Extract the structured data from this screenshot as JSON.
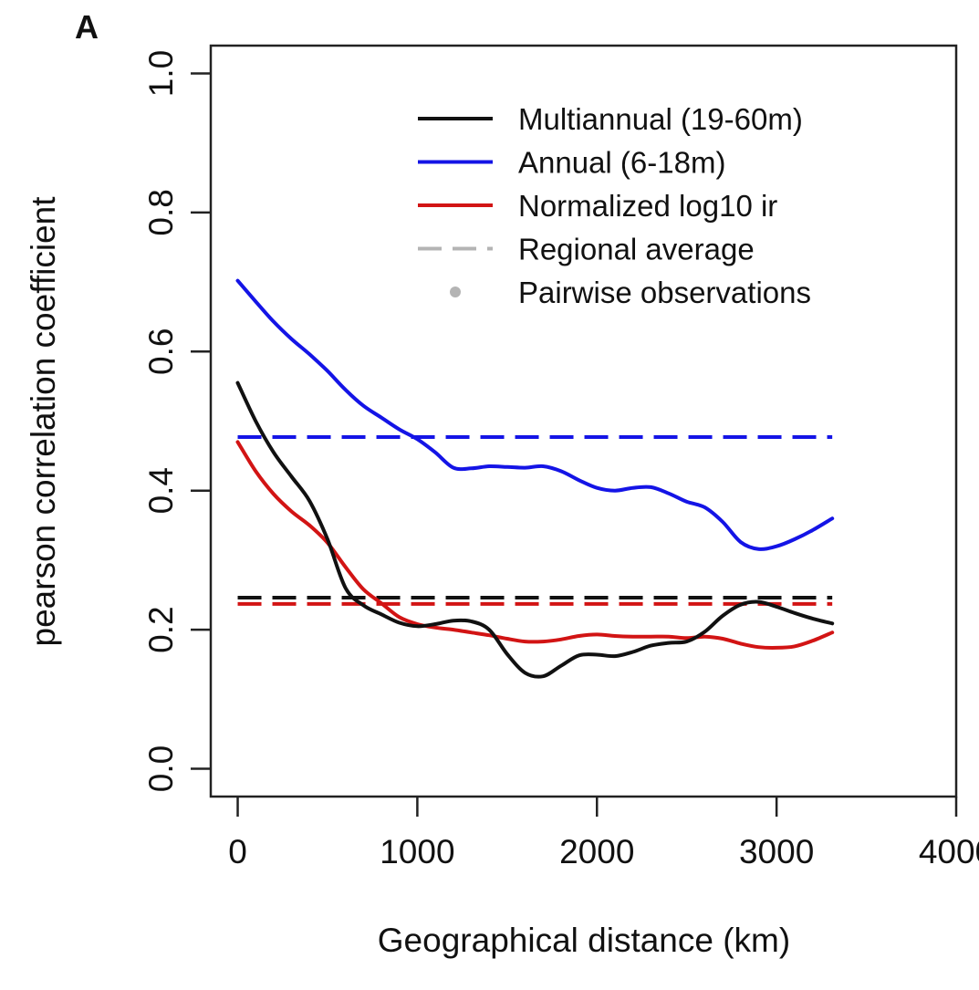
{
  "panel_label": "A",
  "chart_data": {
    "type": "line",
    "xlabel": "Geographical distance (km)",
    "ylabel": "pearson correlation coefficient",
    "xlim": [
      -150,
      4000
    ],
    "ylim": [
      -0.04,
      1.04
    ],
    "x_ticks": [
      0,
      1000,
      2000,
      3000,
      4000
    ],
    "y_ticks": [
      0.0,
      0.2,
      0.4,
      0.6,
      0.8,
      1.0
    ],
    "y_tick_labels": [
      "0.0",
      "0.2",
      "0.4",
      "0.6",
      "0.8",
      "1.0"
    ],
    "x_tick_labels": [
      "0",
      "1000",
      "2000",
      "3000",
      "4000"
    ],
    "grid": false,
    "legend_position": "top-right",
    "series": [
      {
        "name": "Multiannual (19-60m)",
        "color": "#111111",
        "points": [
          [
            0,
            0.555
          ],
          [
            100,
            0.5
          ],
          [
            200,
            0.455
          ],
          [
            300,
            0.42
          ],
          [
            400,
            0.385
          ],
          [
            500,
            0.33
          ],
          [
            600,
            0.26
          ],
          [
            700,
            0.235
          ],
          [
            800,
            0.222
          ],
          [
            900,
            0.21
          ],
          [
            1000,
            0.205
          ],
          [
            1100,
            0.208
          ],
          [
            1200,
            0.213
          ],
          [
            1300,
            0.212
          ],
          [
            1400,
            0.2
          ],
          [
            1500,
            0.165
          ],
          [
            1600,
            0.138
          ],
          [
            1700,
            0.133
          ],
          [
            1800,
            0.148
          ],
          [
            1900,
            0.163
          ],
          [
            2000,
            0.164
          ],
          [
            2100,
            0.162
          ],
          [
            2200,
            0.168
          ],
          [
            2300,
            0.177
          ],
          [
            2400,
            0.181
          ],
          [
            2500,
            0.183
          ],
          [
            2600,
            0.197
          ],
          [
            2700,
            0.22
          ],
          [
            2800,
            0.236
          ],
          [
            2900,
            0.24
          ],
          [
            3000,
            0.233
          ],
          [
            3100,
            0.224
          ],
          [
            3200,
            0.216
          ],
          [
            3310,
            0.209
          ]
        ]
      },
      {
        "name": "Annual (6-18m)",
        "color": "#1414e6",
        "points": [
          [
            0,
            0.702
          ],
          [
            100,
            0.672
          ],
          [
            200,
            0.643
          ],
          [
            300,
            0.618
          ],
          [
            400,
            0.596
          ],
          [
            500,
            0.572
          ],
          [
            600,
            0.545
          ],
          [
            700,
            0.522
          ],
          [
            800,
            0.505
          ],
          [
            900,
            0.488
          ],
          [
            1000,
            0.474
          ],
          [
            1100,
            0.455
          ],
          [
            1200,
            0.433
          ],
          [
            1300,
            0.432
          ],
          [
            1400,
            0.435
          ],
          [
            1500,
            0.434
          ],
          [
            1600,
            0.433
          ],
          [
            1700,
            0.435
          ],
          [
            1800,
            0.428
          ],
          [
            1900,
            0.415
          ],
          [
            2000,
            0.404
          ],
          [
            2100,
            0.4
          ],
          [
            2200,
            0.404
          ],
          [
            2300,
            0.405
          ],
          [
            2400,
            0.396
          ],
          [
            2500,
            0.384
          ],
          [
            2600,
            0.376
          ],
          [
            2700,
            0.355
          ],
          [
            2800,
            0.326
          ],
          [
            2900,
            0.316
          ],
          [
            3000,
            0.32
          ],
          [
            3100,
            0.33
          ],
          [
            3200,
            0.343
          ],
          [
            3310,
            0.36
          ]
        ]
      },
      {
        "name": "Normalized log10 ir",
        "color": "#d21414",
        "points": [
          [
            0,
            0.47
          ],
          [
            100,
            0.428
          ],
          [
            200,
            0.395
          ],
          [
            300,
            0.37
          ],
          [
            400,
            0.35
          ],
          [
            500,
            0.325
          ],
          [
            600,
            0.29
          ],
          [
            700,
            0.258
          ],
          [
            800,
            0.238
          ],
          [
            900,
            0.218
          ],
          [
            1000,
            0.208
          ],
          [
            1100,
            0.203
          ],
          [
            1200,
            0.2
          ],
          [
            1300,
            0.196
          ],
          [
            1400,
            0.192
          ],
          [
            1500,
            0.187
          ],
          [
            1600,
            0.183
          ],
          [
            1700,
            0.183
          ],
          [
            1800,
            0.186
          ],
          [
            1900,
            0.191
          ],
          [
            2000,
            0.193
          ],
          [
            2100,
            0.191
          ],
          [
            2200,
            0.19
          ],
          [
            2300,
            0.19
          ],
          [
            2400,
            0.19
          ],
          [
            2500,
            0.188
          ],
          [
            2600,
            0.19
          ],
          [
            2700,
            0.187
          ],
          [
            2800,
            0.18
          ],
          [
            2900,
            0.175
          ],
          [
            3000,
            0.174
          ],
          [
            3100,
            0.176
          ],
          [
            3200,
            0.184
          ],
          [
            3310,
            0.196
          ]
        ]
      }
    ],
    "regional_averages": [
      {
        "series": "Annual (6-18m)",
        "color": "#1414e6",
        "y": 0.477,
        "x_range": [
          0,
          3310
        ]
      },
      {
        "series": "Multiannual (19-60m)",
        "color": "#111111",
        "y": 0.246,
        "x_range": [
          0,
          3310
        ]
      },
      {
        "series": "Normalized log10 ir",
        "color": "#d21414",
        "y": 0.237,
        "x_range": [
          0,
          3310
        ]
      }
    ],
    "legend": [
      {
        "label": "Multiannual (19-60m)",
        "style": "line",
        "color": "#111111"
      },
      {
        "label": "Annual (6-18m)",
        "style": "line",
        "color": "#1414e6"
      },
      {
        "label": "Normalized log10 ir",
        "style": "line",
        "color": "#d21414"
      },
      {
        "label": "Regional average",
        "style": "dashed",
        "color": "#b4b4b4"
      },
      {
        "label": "Pairwise observations",
        "style": "dot",
        "color": "#b4b4b4"
      }
    ]
  }
}
